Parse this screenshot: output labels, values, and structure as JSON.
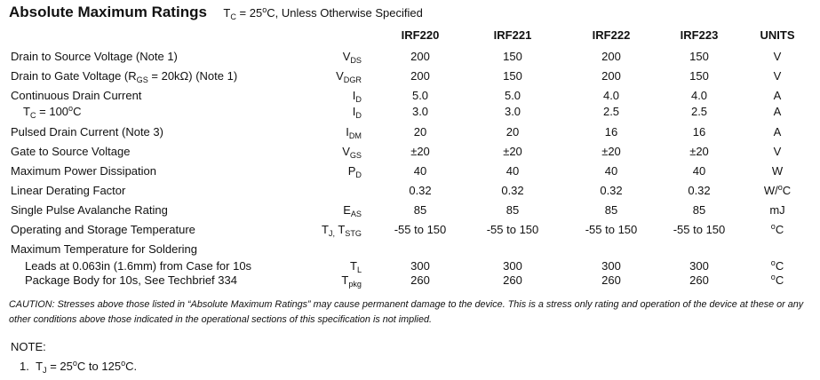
{
  "title": "Absolute Maximum Ratings",
  "condition": {
    "sym": "T",
    "sub": "C",
    "mid": " = 25",
    "sup": "o",
    "rest": "C, Unless Otherwise Specified"
  },
  "headers": [
    "IRF220",
    "IRF221",
    "IRF222",
    "IRF223",
    "UNITS"
  ],
  "rows": [
    {
      "label": "Drain to Source Voltage (Note 1)",
      "sym": "V",
      "symsub": "DS",
      "values": [
        "200",
        "150",
        "200",
        "150"
      ],
      "unit": "V"
    },
    {
      "label": "Drain to Gate Voltage (R",
      "labelsub": "GS",
      "labelrest": " = 20kΩ) (Note 1)",
      "sym": "V",
      "symsub": "DGR",
      "values": [
        "200",
        "150",
        "200",
        "150"
      ],
      "unit": "V"
    },
    {
      "label": "Continuous Drain Current",
      "sym": "I",
      "symsub": "D",
      "values": [
        "5.0",
        "5.0",
        "4.0",
        "4.0"
      ],
      "unit": "A"
    },
    {
      "label": "T",
      "labelsub": "C",
      "labelrest": " = 100",
      "labelsup": "o",
      "labelend": "C",
      "sym": "I",
      "symsub": "D",
      "values": [
        "3.0",
        "3.0",
        "2.5",
        "2.5"
      ],
      "unit": "A"
    },
    {
      "label": "Pulsed Drain Current (Note 3)",
      "sym": "I",
      "symsub": "DM",
      "values": [
        "20",
        "20",
        "16",
        "16"
      ],
      "unit": "A"
    },
    {
      "label": "Gate to Source Voltage",
      "sym": "V",
      "symsub": "GS",
      "values": [
        "±20",
        "±20",
        "±20",
        "±20"
      ],
      "unit": "V"
    },
    {
      "label": "Maximum Power Dissipation",
      "sym": "P",
      "symsub": "D",
      "values": [
        "40",
        "40",
        "40",
        "40"
      ],
      "unit": "W"
    },
    {
      "label": "Linear Derating Factor",
      "values": [
        "0.32",
        "0.32",
        "0.32",
        "0.32"
      ],
      "unit": "W/",
      "unitsup": "o",
      "unitend": "C"
    },
    {
      "label": "Single Pulse Avalanche Rating",
      "sym": "E",
      "symsub": "AS",
      "values": [
        "85",
        "85",
        "85",
        "85"
      ],
      "unit": "mJ"
    },
    {
      "label": "Operating and Storage Temperature",
      "sym": "T",
      "symsub": "J,",
      "sym2": " T",
      "sym2sub": "STG",
      "values": [
        "-55 to 150",
        "-55 to 150",
        "-55 to 150",
        "-55 to 150"
      ],
      "unitsup": "o",
      "unitend": "C"
    },
    {
      "label": "Maximum Temperature for Soldering"
    },
    {
      "label": "Leads at 0.063in (1.6mm) from Case for 10s",
      "sym": "T",
      "symsub": "L",
      "values": [
        "300",
        "300",
        "300",
        "300"
      ],
      "unitsup": "o",
      "unitend": "C"
    },
    {
      "label": "Package Body for 10s, See Techbrief 334",
      "sym": "T",
      "symsub": "pkg",
      "values": [
        "260",
        "260",
        "260",
        "260"
      ],
      "unitsup": "o",
      "unitend": "C"
    }
  ],
  "caution": "CAUTION: Stresses above those listed in “Absolute Maximum Ratings” may cause permanent damage to the device. This is a stress only rating and operation of the device at these or any other conditions above those indicated in the operational sections of this specification is not implied.",
  "note_heading": "NOTE:",
  "note1": {
    "num": "1.",
    "sym": "T",
    "sub": "J",
    "mid": " = 25",
    "sup1": "o",
    "mid2": "C to 125",
    "sup2": "o",
    "end": "C."
  }
}
